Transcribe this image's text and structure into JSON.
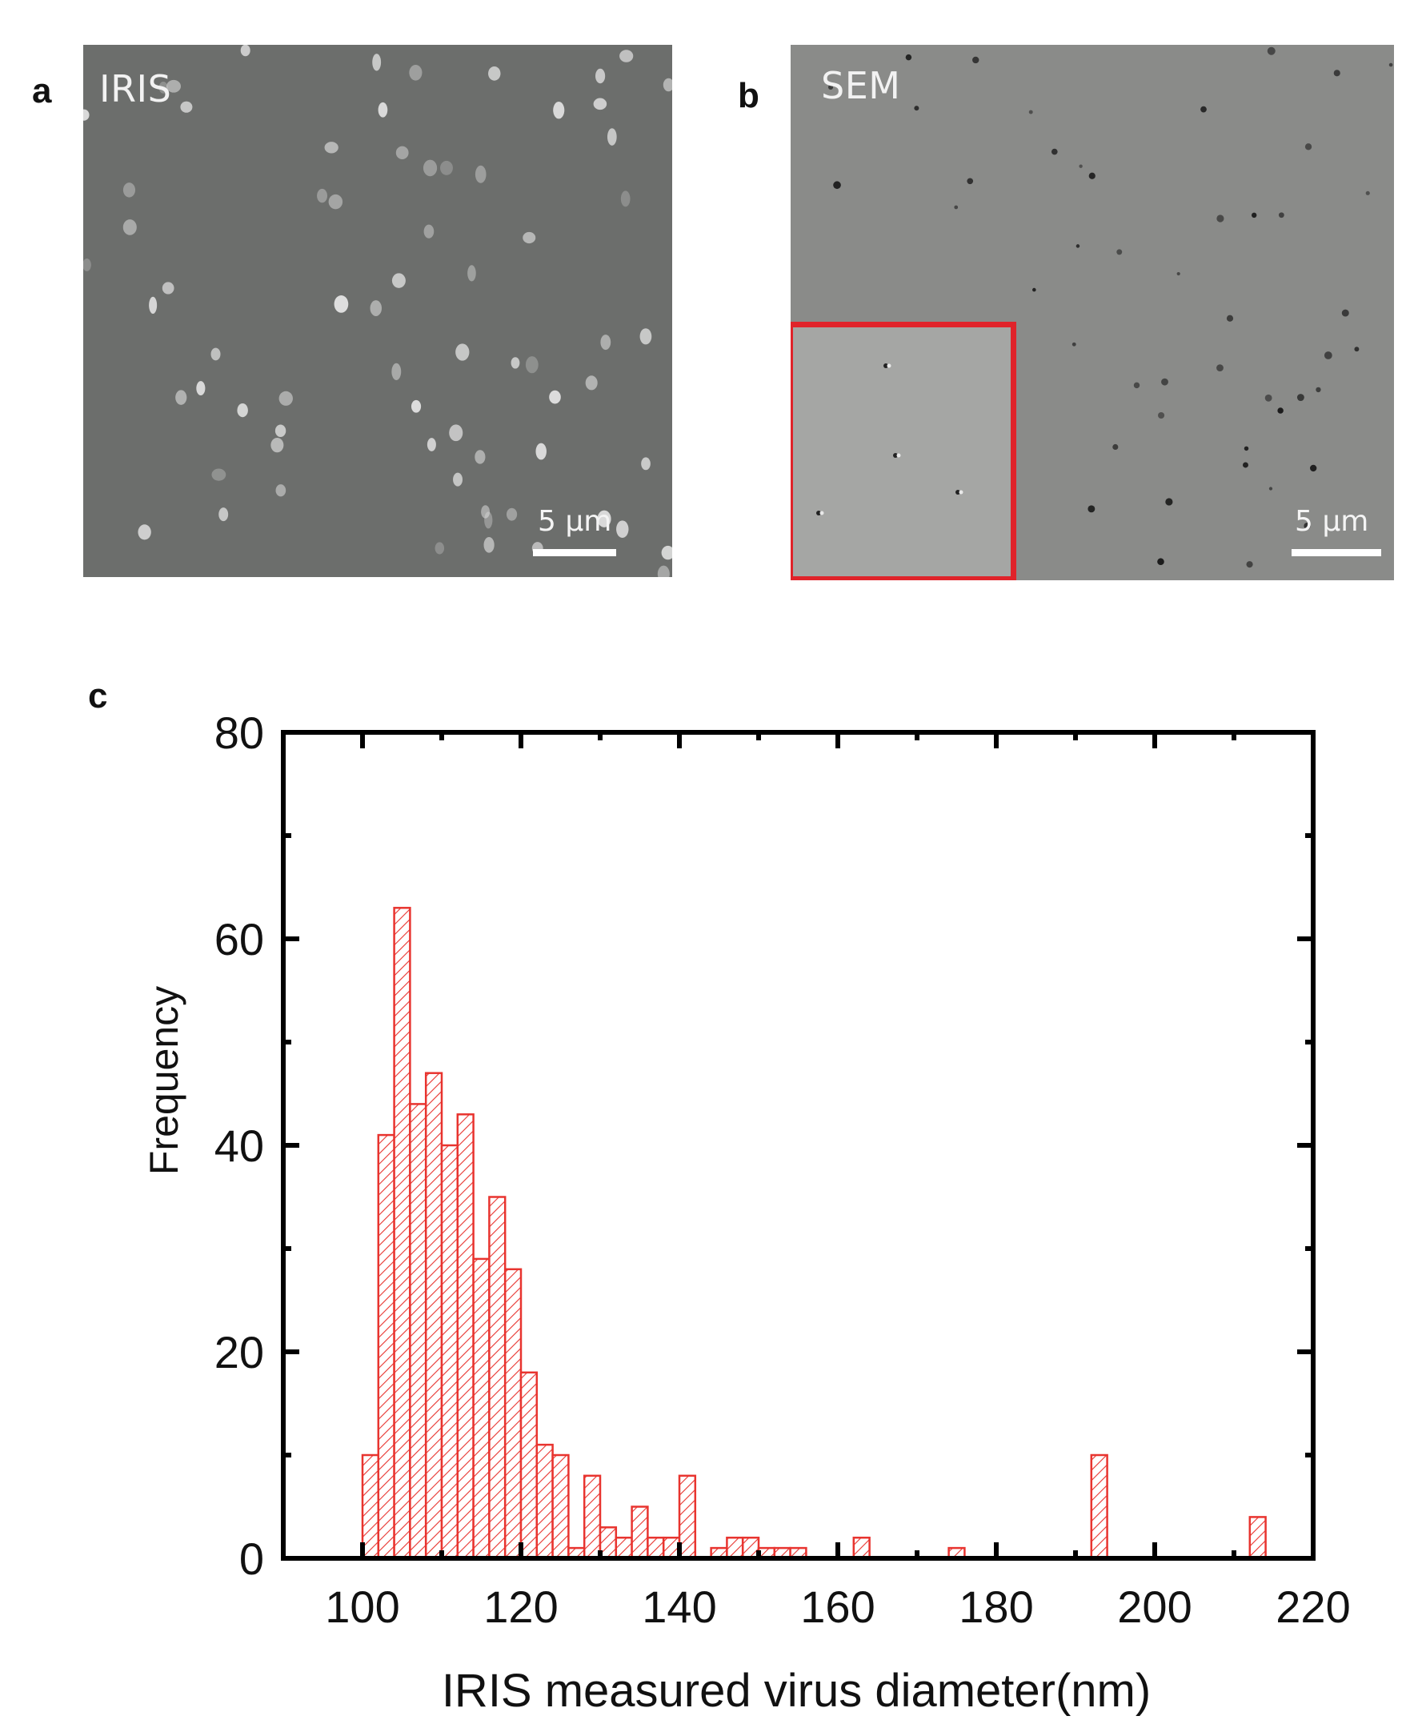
{
  "panels": {
    "a": {
      "letter": "a",
      "title": "IRIS",
      "scalebar_label": "5 µm",
      "background": "#6c6e6c",
      "particle_color": "#ececec"
    },
    "b": {
      "letter": "b",
      "title": "SEM",
      "scalebar_label": "5 µm",
      "background": "#8a8b89",
      "particle_color": "#1a1a1a",
      "inset_border_color": "#e0232a",
      "inset_background": "#a5a6a4"
    },
    "c": {
      "letter": "c"
    }
  },
  "chart_data": {
    "type": "bar",
    "title": "",
    "xlabel": "IRIS measured virus diameter(nm)",
    "ylabel": "Frequency",
    "xlim": [
      90,
      220
    ],
    "ylim": [
      0,
      80
    ],
    "x_ticks": [
      "100",
      "120",
      "140",
      "160",
      "180",
      "200",
      "220"
    ],
    "y_ticks": [
      "0",
      "20",
      "40",
      "60",
      "80"
    ],
    "bin_width": 2,
    "grid": false,
    "legend": null,
    "bar_color": "#e8342f",
    "bar_style": "hatched outline",
    "categories": [
      100,
      102,
      104,
      106,
      108,
      110,
      112,
      114,
      116,
      118,
      120,
      122,
      124,
      126,
      128,
      130,
      132,
      134,
      136,
      138,
      140,
      142,
      144,
      146,
      148,
      150,
      152,
      154,
      162,
      174,
      192,
      212
    ],
    "values": [
      10,
      41,
      63,
      44,
      47,
      40,
      43,
      29,
      35,
      28,
      18,
      11,
      10,
      1,
      8,
      3,
      2,
      5,
      2,
      2,
      8,
      0,
      1,
      2,
      2,
      1,
      1,
      1,
      2,
      1,
      10,
      4
    ]
  }
}
